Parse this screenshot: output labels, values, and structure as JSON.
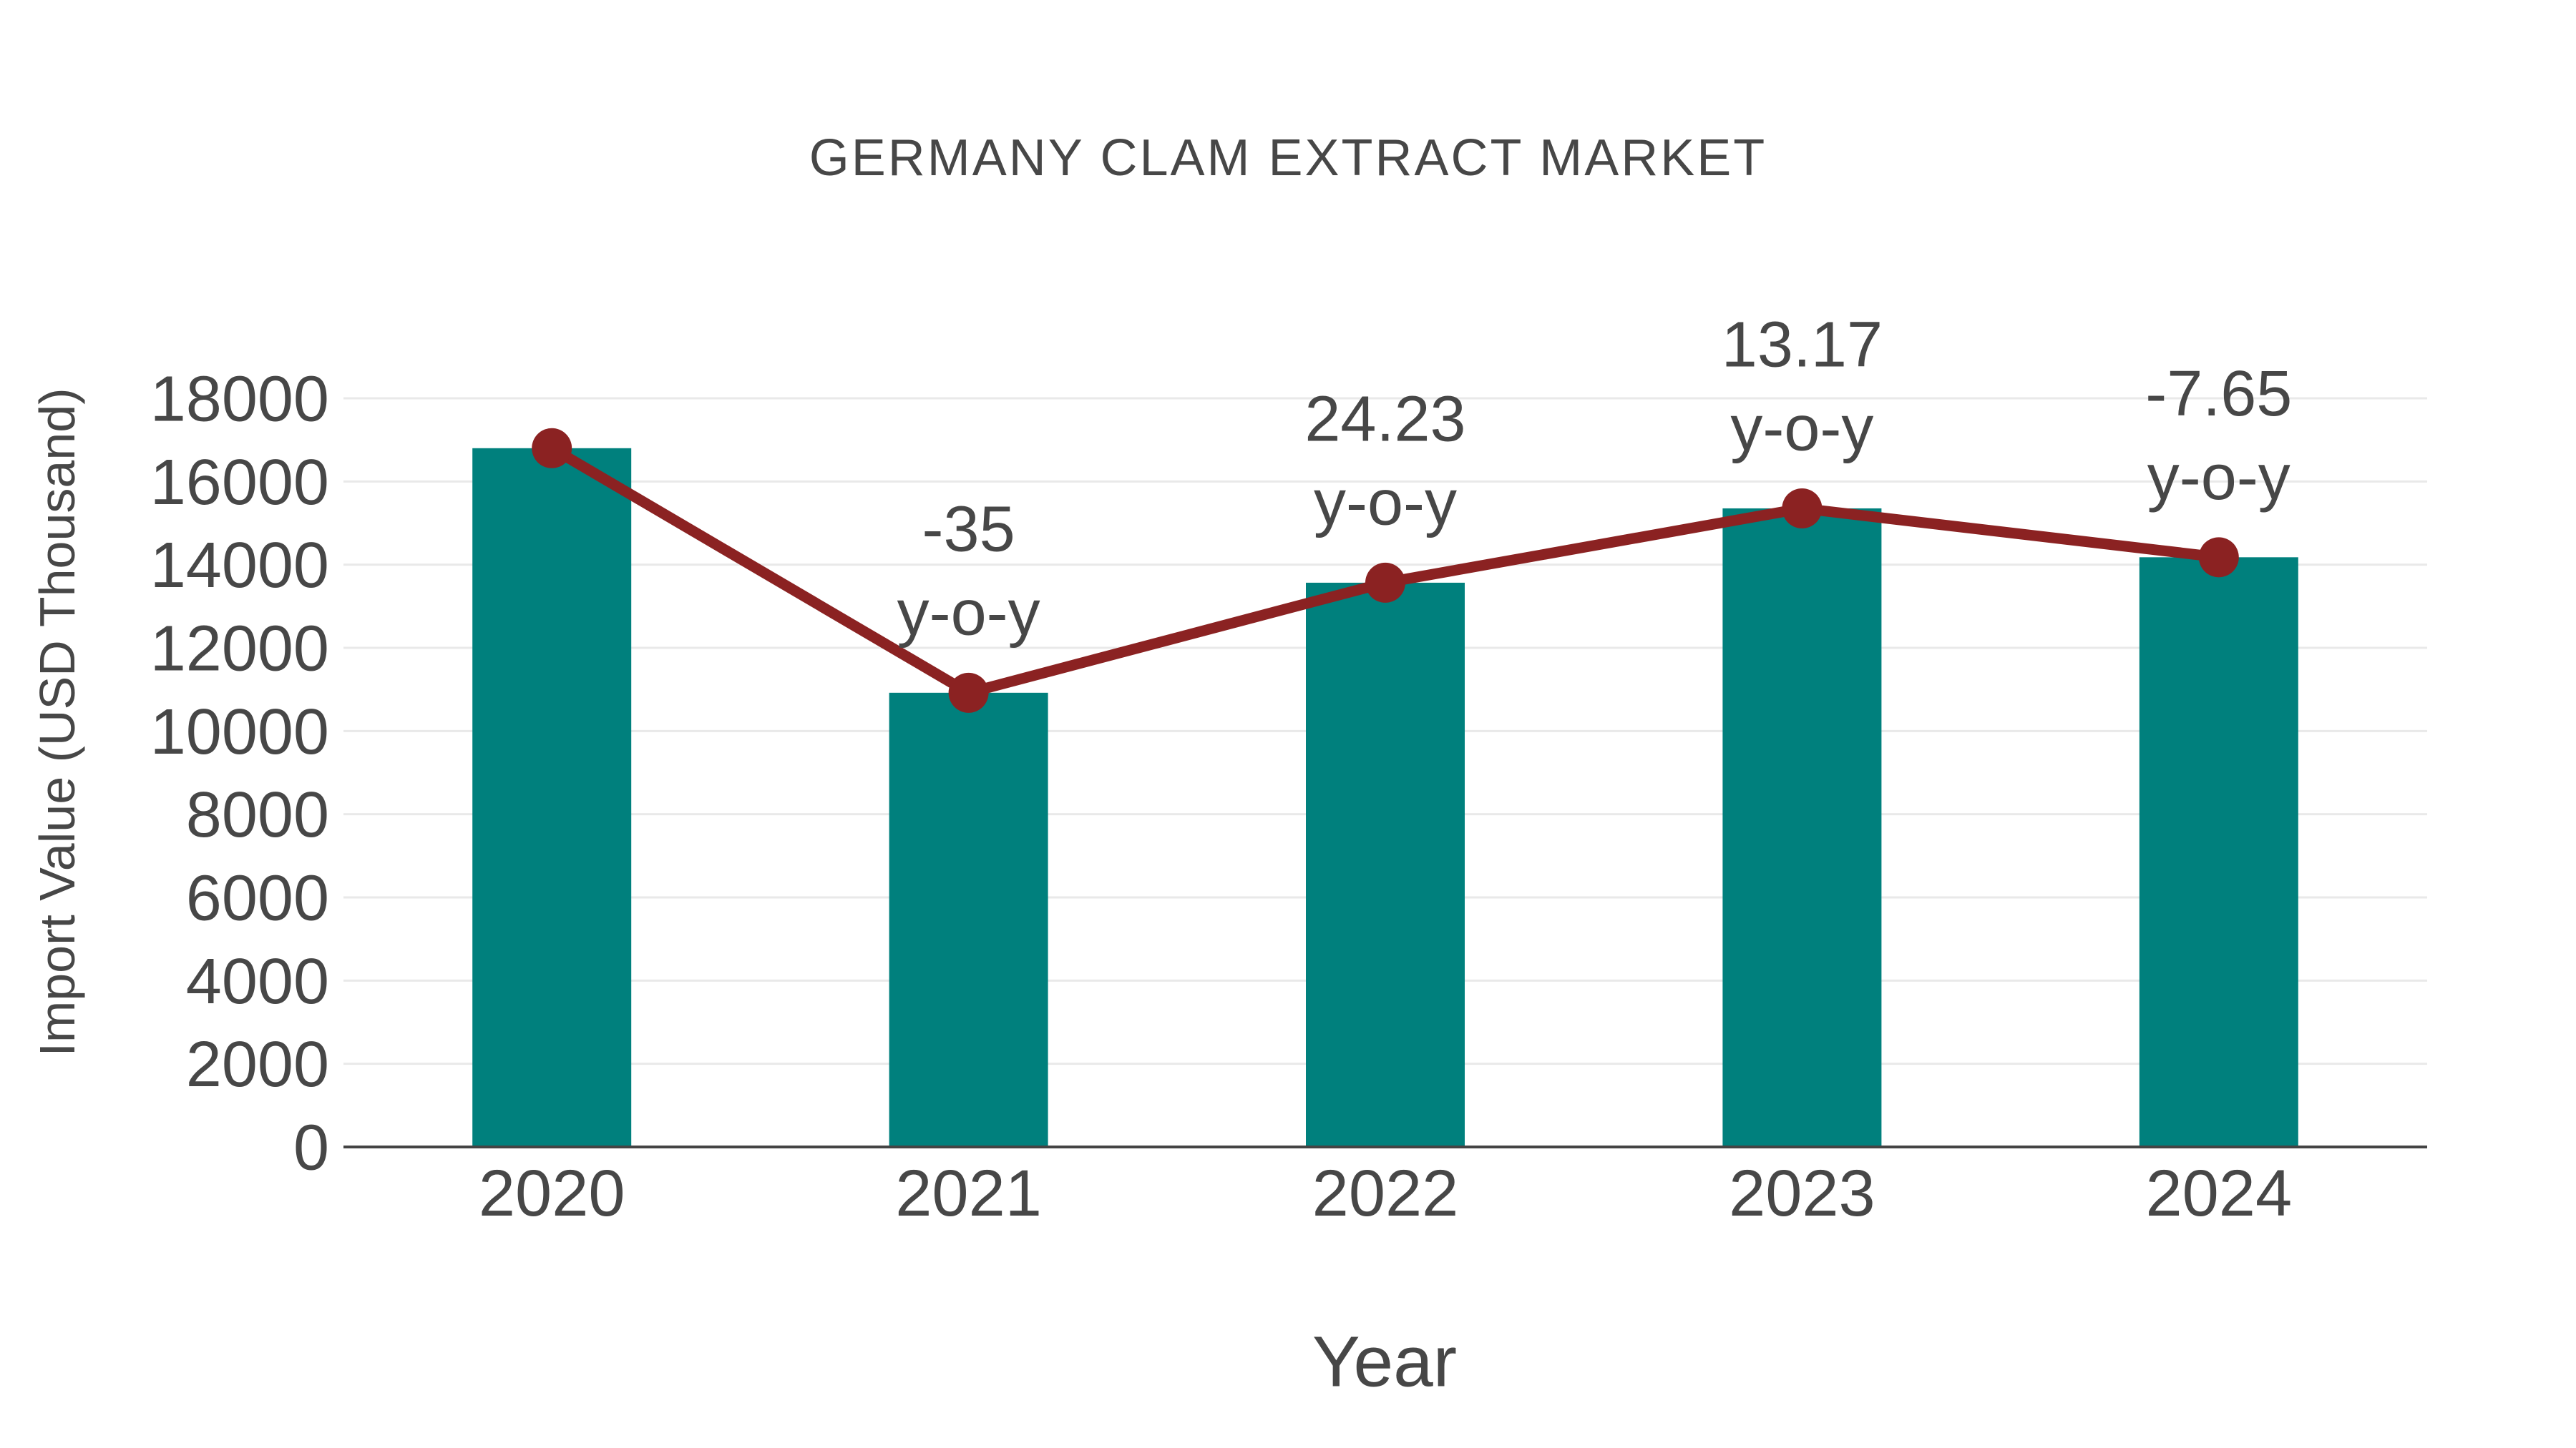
{
  "chart_data": {
    "type": "bar",
    "overlay": "line",
    "title": "GERMANY CLAM EXTRACT MARKET",
    "xlabel": "Year",
    "ylabel": "Import Value (USD Thousand)",
    "categories": [
      "2020",
      "2021",
      "2022",
      "2023",
      "2024"
    ],
    "values": [
      16800,
      10920,
      13566,
      15353,
      14178
    ],
    "line_values": [
      16800,
      10920,
      13566,
      15353,
      14178
    ],
    "annotations": [
      {
        "category": "2021",
        "line1": "-35",
        "line2": "y-o-y"
      },
      {
        "category": "2022",
        "line1": "24.23",
        "line2": "y-o-y"
      },
      {
        "category": "2023",
        "line1": "13.17",
        "line2": "y-o-y"
      },
      {
        "category": "2024",
        "line1": "-7.65",
        "line2": "y-o-y"
      }
    ],
    "yticks": [
      0,
      2000,
      4000,
      6000,
      8000,
      10000,
      12000,
      14000,
      16000,
      18000
    ],
    "ylim": [
      0,
      18000
    ],
    "grid": "horizontal",
    "legend_position": "none",
    "colors": {
      "bar": "#00807D",
      "line": "#8B2222",
      "marker": "#8B2222",
      "text": "#474747",
      "grid": "#E9E9E9",
      "axis": "#444444",
      "background": "#FFFFFF"
    }
  }
}
